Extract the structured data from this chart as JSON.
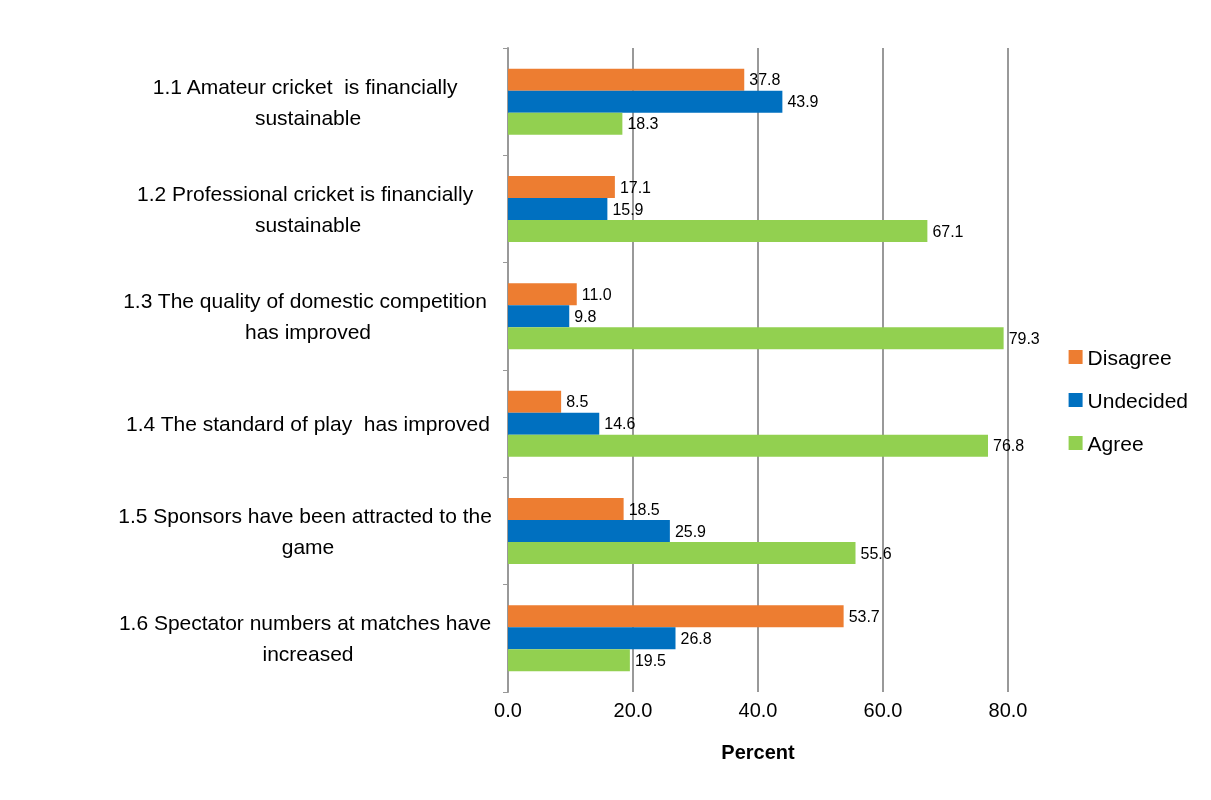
{
  "chart_data": {
    "type": "bar",
    "orientation": "horizontal",
    "xlabel": "Percent",
    "categories": [
      "1.1 Amateur cricket  is financially sustainable",
      "1.2 Professional cricket is financially sustainable",
      "1.3 The quality of domestic competition has improved",
      "1.4 The standard of play  has improved",
      "1.5 Sponsors have been attracted to the game",
      "1.6 Spectator numbers at matches have increased"
    ],
    "series": [
      {
        "name": "Disagree",
        "color": "#ed7d31",
        "values": [
          37.8,
          17.1,
          11.0,
          8.5,
          18.5,
          53.7
        ],
        "value_labels": [
          "37.8",
          "17.1",
          "11.0",
          "8.5",
          "18.5",
          "53.7"
        ]
      },
      {
        "name": "Undecided",
        "color": "#0070c0",
        "values": [
          43.9,
          15.9,
          9.8,
          14.6,
          25.9,
          26.8
        ],
        "value_labels": [
          "43.9",
          "15.9",
          "9.8",
          "14.6",
          "25.9",
          "26.8"
        ]
      },
      {
        "name": "Agree",
        "color": "#92d050",
        "values": [
          18.3,
          67.1,
          79.3,
          76.8,
          55.6,
          19.5
        ],
        "value_labels": [
          "18.3",
          "67.1",
          "79.3",
          "76.8",
          "55.6",
          "19.5"
        ]
      }
    ],
    "xlim": [
      0,
      80
    ],
    "xticks": [
      {
        "value": 0,
        "label": "0.0"
      },
      {
        "value": 20,
        "label": "20.0"
      },
      {
        "value": 40,
        "label": "40.0"
      },
      {
        "value": 60,
        "label": "60.0"
      },
      {
        "value": 80,
        "label": "80.0"
      }
    ],
    "grid": "x",
    "legend": "right"
  }
}
